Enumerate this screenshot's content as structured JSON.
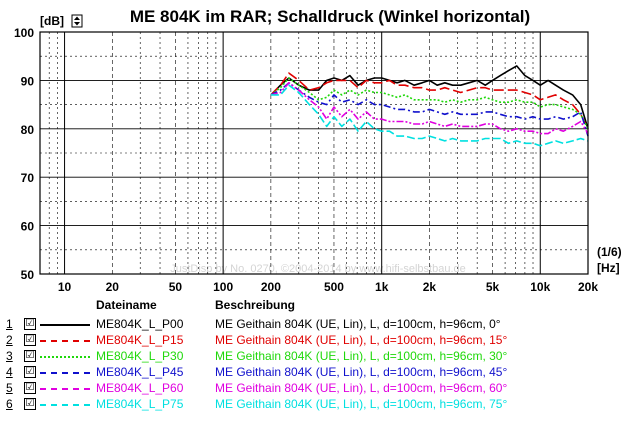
{
  "chart_data": {
    "type": "line",
    "title": "ME 804K im RAR; Schalldruck (Winkel horizontal)",
    "ylabel": "[dB]",
    "xunit_top": "(1/6)",
    "xunit_bottom": "[Hz]",
    "watermark": "JustDisp by No. 0270, ©2004-2014 by www.hifi-selbstbau.de",
    "xscale": "log",
    "xlim": [
      7,
      20000
    ],
    "ylim": [
      50,
      100
    ],
    "grid": true,
    "yticks": [
      "50",
      "60",
      "70",
      "80",
      "90",
      "100"
    ],
    "xticks": [
      {
        "v": 10,
        "l": "10"
      },
      {
        "v": 20,
        "l": "20"
      },
      {
        "v": 50,
        "l": "50"
      },
      {
        "v": 100,
        "l": "100"
      },
      {
        "v": 200,
        "l": "200"
      },
      {
        "v": 500,
        "l": "500"
      },
      {
        "v": 1000,
        "l": "1k"
      },
      {
        "v": 2000,
        "l": "2k"
      },
      {
        "v": 5000,
        "l": "5k"
      },
      {
        "v": 10000,
        "l": "10k"
      },
      {
        "v": 20000,
        "l": "20k"
      }
    ],
    "x": [
      200,
      230,
      260,
      300,
      350,
      400,
      450,
      500,
      560,
      630,
      710,
      800,
      900,
      1000,
      1120,
      1250,
      1400,
      1600,
      1800,
      2000,
      2240,
      2500,
      2800,
      3150,
      3550,
      4000,
      4500,
      5000,
      5600,
      6300,
      7100,
      8000,
      9000,
      10000,
      11200,
      12500,
      14000,
      16000,
      18000,
      20000
    ],
    "series": [
      {
        "color": "#000000",
        "dash": "solid",
        "values": [
          87,
          89,
          90.5,
          89,
          88,
          88,
          90,
          90.5,
          90,
          91,
          89,
          90,
          90.5,
          90.5,
          90,
          89.5,
          90,
          89,
          89.5,
          90,
          89,
          89.5,
          89,
          89,
          89.5,
          90,
          89,
          90,
          91,
          92,
          93,
          91,
          90,
          89,
          90,
          89,
          88,
          87,
          85,
          80
        ]
      },
      {
        "color": "#e00000",
        "dash": "longdash",
        "values": [
          87,
          89,
          91.5,
          90,
          88,
          88.5,
          89.5,
          90,
          90,
          90,
          88.5,
          90,
          89.5,
          89.5,
          90,
          89,
          89,
          88.5,
          88.5,
          88,
          88,
          88.5,
          88,
          87.5,
          88,
          88.5,
          88.5,
          88,
          88,
          88,
          88,
          87.5,
          87,
          86,
          86.5,
          87,
          86,
          85,
          83,
          80
        ]
      },
      {
        "color": "#1fd80a",
        "dash": "dot",
        "values": [
          87,
          88.5,
          90.5,
          89,
          87.5,
          86,
          86.5,
          88,
          87,
          88,
          87,
          88,
          87.5,
          87.5,
          87,
          86.5,
          87,
          86,
          86,
          86,
          86,
          85.5,
          86,
          85.5,
          86,
          86,
          86.5,
          86,
          85.5,
          85.5,
          86,
          85.5,
          85.5,
          84.5,
          85,
          85,
          84.5,
          84,
          83,
          80
        ]
      },
      {
        "color": "#1010cc",
        "dash": "dashdot",
        "values": [
          87,
          88,
          89.5,
          88,
          86.5,
          85.5,
          85,
          87,
          85.5,
          86,
          85,
          86,
          85,
          85,
          84.5,
          84,
          84,
          83.5,
          83.5,
          84,
          83.5,
          83,
          83.5,
          83,
          83,
          83,
          83.5,
          83.5,
          83,
          82.5,
          82.5,
          82,
          82.5,
          82,
          82,
          82.5,
          82,
          82.5,
          83.5,
          78.5
        ]
      },
      {
        "color": "#e000e0",
        "dash": "dashdotdot",
        "values": [
          87,
          87.5,
          89.5,
          88,
          86,
          84.5,
          82,
          84.5,
          82.5,
          84,
          82,
          83.5,
          82,
          82,
          81.5,
          81.5,
          81.5,
          81,
          81,
          81.5,
          81,
          80.5,
          81,
          80.5,
          80.5,
          80.5,
          81,
          81,
          80,
          79.5,
          80,
          79.5,
          79.5,
          79,
          79,
          80,
          79.5,
          80.5,
          81.5,
          79
        ]
      },
      {
        "color": "#00e0e0",
        "dash": "medium",
        "values": [
          87,
          87,
          89,
          87.5,
          85,
          83,
          80.5,
          82.5,
          80.5,
          82,
          79.5,
          81.5,
          80,
          79.5,
          79.5,
          78.5,
          78.5,
          78,
          78,
          78.5,
          78,
          77.5,
          78,
          77.5,
          77.5,
          77.5,
          78,
          78,
          78,
          77,
          77.5,
          77,
          77,
          76.5,
          77,
          77.5,
          77,
          77.5,
          78,
          77.5
        ]
      }
    ]
  },
  "legend": {
    "header_file": "Dateiname",
    "header_desc": "Beschreibung",
    "rows": [
      {
        "num": "1",
        "check": "☑",
        "file": "ME804K_L_P00",
        "desc": "ME Geithain 804K (UE, Lin), L, d=100cm, h=96cm, 0°",
        "color": "#000000",
        "style": "solid"
      },
      {
        "num": "2",
        "check": "☑",
        "file": "ME804K_L_P15",
        "desc": "ME Geithain 804K (UE, Lin), L, d=100cm, h=96cm, 15°",
        "color": "#e00000",
        "style": "dashed"
      },
      {
        "num": "3",
        "check": "☑",
        "file": "ME804K_L_P30",
        "desc": "ME Geithain 804K (UE, Lin), L, d=100cm, h=96cm, 30°",
        "color": "#1fd80a",
        "style": "dotted"
      },
      {
        "num": "4",
        "check": "☑",
        "file": "ME804K_L_P45",
        "desc": "ME Geithain 804K (UE, Lin), L, d=100cm, h=96cm, 45°",
        "color": "#1010cc",
        "style": "dashed"
      },
      {
        "num": "5",
        "check": "☑",
        "file": "ME804K_L_P60",
        "desc": "ME Geithain 804K (UE, Lin), L, d=100cm, h=96cm, 60°",
        "color": "#e000e0",
        "style": "dashed"
      },
      {
        "num": "6",
        "check": "☑",
        "file": "ME804K_L_P75",
        "desc": "ME Geithain 804K (UE, Lin), L, d=100cm, h=96cm, 75°",
        "color": "#00e0e0",
        "style": "dashed"
      }
    ]
  }
}
